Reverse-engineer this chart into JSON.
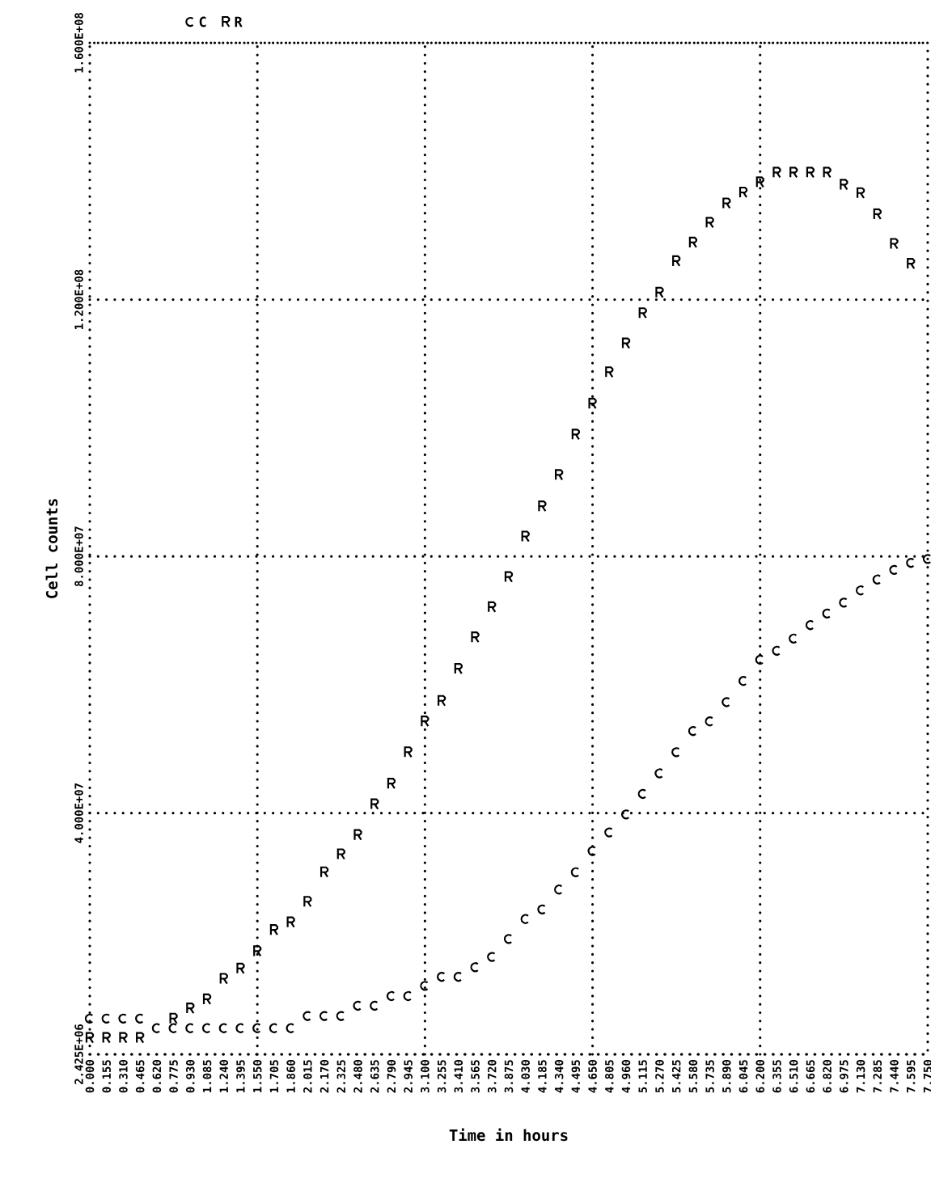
{
  "chart_data": {
    "type": "scatter",
    "xlabel": "Time in hours",
    "ylabel": "Cell counts",
    "legend": "top left",
    "x": [
      0,
      0.155,
      0.31,
      0.465,
      0.62,
      0.775,
      0.93,
      1.085,
      1.24,
      1.395,
      1.55,
      1.705,
      1.86,
      2.015,
      2.17,
      2.325,
      2.48,
      2.635,
      2.79,
      2.945,
      3.1,
      3.255,
      3.41,
      3.565,
      3.72,
      3.875,
      4.03,
      4.185,
      4.34,
      4.495,
      4.65,
      4.805,
      4.96,
      5.115,
      5.27,
      5.425,
      5.58,
      5.735,
      5.89,
      6.045,
      6.2,
      6.355,
      6.51,
      6.665,
      6.82,
      6.975,
      7.13,
      7.285,
      7.44,
      7.595,
      7.75
    ],
    "series": [
      {
        "name": "C",
        "color": "#000000",
        "values": [
          8000000.0,
          8000000.0,
          8000000.0,
          8000000.0,
          6500000.0,
          6500000.0,
          6500000.0,
          6500000.0,
          6500000.0,
          6500000.0,
          6500000.0,
          6500000.0,
          6500000.0,
          8400000.0,
          8400000.0,
          8400000.0,
          10000000.0,
          10000000.0,
          11500000.0,
          11500000.0,
          13100000.0,
          14500000.0,
          14500000.0,
          16000000.0,
          17600000.0,
          20400000.0,
          23500000.0,
          25000000.0,
          28100000.0,
          30800000.0,
          34100000.0,
          37000000.0,
          39800000.0,
          43000000.0,
          46200000.0,
          49500000.0,
          52800000.0,
          54300000.0,
          57300000.0,
          60600000.0,
          63900000.0,
          65300000.0,
          67200000.0,
          69300000.0,
          71100000.0,
          72800000.0,
          74700000.0,
          76400000.0,
          77900000.0,
          79000000.0,
          79600000.0
        ]
      },
      {
        "name": "R",
        "color": "#000000",
        "values": [
          5000000.0,
          5000000.0,
          5000000.0,
          5000000.0,
          null,
          8000000.0,
          9600000.0,
          11000000.0,
          14200000.0,
          15800000.0,
          18500000.0,
          21800000.0,
          23000000.0,
          26200000.0,
          30800000.0,
          33600000.0,
          36600000.0,
          41400000.0,
          44600000.0,
          49500000.0,
          54300000.0,
          57500000.0,
          62500000.0,
          67400000.0,
          72100000.0,
          76800000.0,
          83100000.0,
          87800000.0,
          92700000.0,
          99000000.0,
          103800000.0,
          108700000.0,
          113200000.0,
          117900000.0,
          121100000.0,
          126000000.0,
          128900000.0,
          132000000.0,
          135000000.0,
          136700000.0,
          138300000.0,
          139800000.0,
          139800000.0,
          139800000.0,
          139800000.0,
          137900000.0,
          136600000.0,
          133300000.0,
          128700000.0,
          125600000.0,
          null
        ]
      }
    ],
    "xlim": [
      0,
      7.75
    ],
    "ylim": [
      2425000,
      160000000
    ],
    "xticks": [
      {
        "value": 0,
        "label": "0.000"
      },
      {
        "value": 0.155,
        "label": "0.155"
      },
      {
        "value": 0.31,
        "label": "0.310"
      },
      {
        "value": 0.465,
        "label": "0.465"
      },
      {
        "value": 0.62,
        "label": "0.620"
      },
      {
        "value": 0.775,
        "label": "0.775"
      },
      {
        "value": 0.93,
        "label": "0.930"
      },
      {
        "value": 1.085,
        "label": "1.085"
      },
      {
        "value": 1.24,
        "label": "1.240"
      },
      {
        "value": 1.395,
        "label": "1.395"
      },
      {
        "value": 1.55,
        "label": "1.550"
      },
      {
        "value": 1.705,
        "label": "1.705"
      },
      {
        "value": 1.86,
        "label": "1.860"
      },
      {
        "value": 2.015,
        "label": "2.015"
      },
      {
        "value": 2.17,
        "label": "2.170"
      },
      {
        "value": 2.325,
        "label": "2.325"
      },
      {
        "value": 2.48,
        "label": "2.480"
      },
      {
        "value": 2.635,
        "label": "2.635"
      },
      {
        "value": 2.79,
        "label": "2.790"
      },
      {
        "value": 2.945,
        "label": "2.945"
      },
      {
        "value": 3.1,
        "label": "3.100"
      },
      {
        "value": 3.255,
        "label": "3.255"
      },
      {
        "value": 3.41,
        "label": "3.410"
      },
      {
        "value": 3.565,
        "label": "3.565"
      },
      {
        "value": 3.72,
        "label": "3.720"
      },
      {
        "value": 3.875,
        "label": "3.875"
      },
      {
        "value": 4.03,
        "label": "4.030"
      },
      {
        "value": 4.185,
        "label": "4.185"
      },
      {
        "value": 4.34,
        "label": "4.340"
      },
      {
        "value": 4.495,
        "label": "4.495"
      },
      {
        "value": 4.65,
        "label": "4.650"
      },
      {
        "value": 4.805,
        "label": "4.805"
      },
      {
        "value": 4.96,
        "label": "4.960"
      },
      {
        "value": 5.115,
        "label": "5.115"
      },
      {
        "value": 5.27,
        "label": "5.270"
      },
      {
        "value": 5.425,
        "label": "5.425"
      },
      {
        "value": 5.58,
        "label": "5.580"
      },
      {
        "value": 5.735,
        "label": "5.735"
      },
      {
        "value": 5.89,
        "label": "5.890"
      },
      {
        "value": 6.045,
        "label": "6.045"
      },
      {
        "value": 6.2,
        "label": "6.200"
      },
      {
        "value": 6.355,
        "label": "6.355"
      },
      {
        "value": 6.51,
        "label": "6.510"
      },
      {
        "value": 6.665,
        "label": "6.665"
      },
      {
        "value": 6.82,
        "label": "6.820"
      },
      {
        "value": 6.975,
        "label": "6.975"
      },
      {
        "value": 7.13,
        "label": "7.130"
      },
      {
        "value": 7.285,
        "label": "7.285"
      },
      {
        "value": 7.44,
        "label": "7.440"
      },
      {
        "value": 7.595,
        "label": "7.595"
      },
      {
        "value": 7.75,
        "label": "7.750"
      }
    ],
    "yticks": [
      {
        "value": 2425000,
        "label": "2.425E+06"
      },
      {
        "value": 40000000,
        "label": "4.000E+07"
      },
      {
        "value": 80000000,
        "label": "8.000E+07"
      },
      {
        "value": 120000000,
        "label": "1.200E+08"
      },
      {
        "value": 160000000,
        "label": "1.600E+08"
      }
    ],
    "grid": "y",
    "ref_lines": [
      {
        "axis": "x",
        "value": 1.55,
        "line_style": "dotted"
      },
      {
        "axis": "x",
        "value": 3.1,
        "line_style": "dotted"
      },
      {
        "axis": "x",
        "value": 4.65,
        "line_style": "dotted"
      },
      {
        "axis": "x",
        "value": 6.2,
        "line_style": "dotted"
      }
    ]
  }
}
